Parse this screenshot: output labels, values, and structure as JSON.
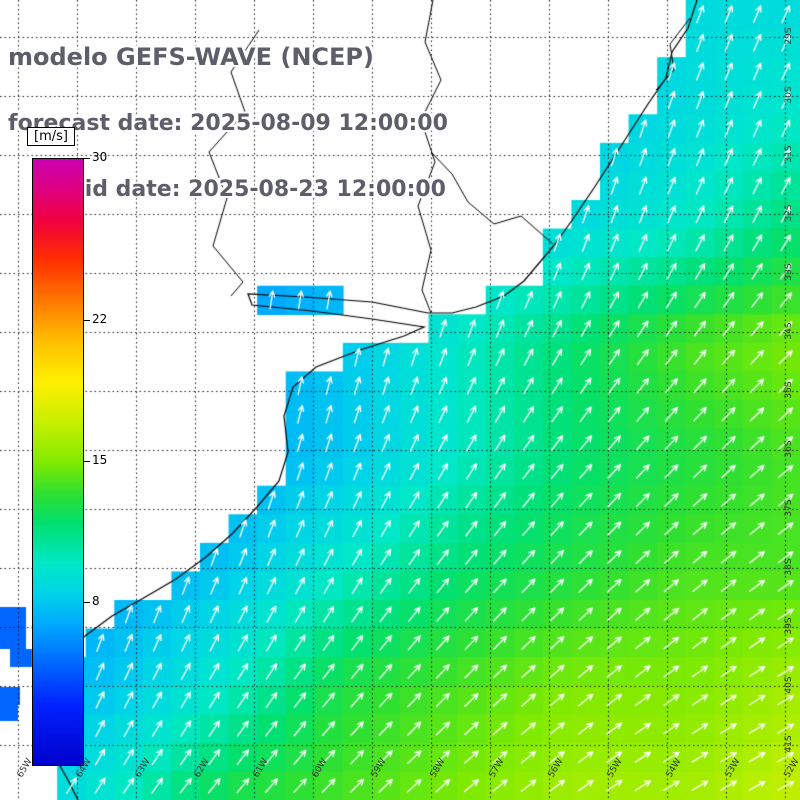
{
  "title": {
    "line1": "modelo GEFS-WAVE (NCEP)",
    "line2": "forecast date: 2025-08-09 12:00:00",
    "line3": "valid date: 2025-08-23 12:00:00"
  },
  "colors": {
    "title": "#5e5e6a",
    "coastline": "#000000",
    "arrow": "#ffffff",
    "grid": "#1a1a1a",
    "labels": "#333333",
    "land": "#ffffff"
  },
  "colorbar": {
    "units_label": "[m/s]",
    "min": 0,
    "max": 30,
    "ticks": [
      30,
      22,
      15,
      8
    ],
    "stops": [
      [
        0,
        "#0000cc"
      ],
      [
        3,
        "#0022ff"
      ],
      [
        5,
        "#0066ff"
      ],
      [
        7,
        "#00aaff"
      ],
      [
        8.5,
        "#00d4e8"
      ],
      [
        10,
        "#00e8c8"
      ],
      [
        12,
        "#00e070"
      ],
      [
        13.5,
        "#30e030"
      ],
      [
        15,
        "#80ea00"
      ],
      [
        17,
        "#c8f000"
      ],
      [
        19,
        "#fff000"
      ],
      [
        21,
        "#ffc000"
      ],
      [
        23,
        "#ff7800"
      ],
      [
        25,
        "#ff3000"
      ],
      [
        27,
        "#f00040"
      ],
      [
        28.5,
        "#e00080"
      ],
      [
        30,
        "#cc00b0"
      ]
    ]
  },
  "grid": {
    "lon_x": [
      18,
      77,
      136,
      195,
      254,
      313,
      372,
      431,
      490,
      549,
      608,
      667,
      726,
      785
    ],
    "lon_labels": [
      "65W",
      "64W",
      "63W",
      "62W",
      "61W",
      "60W",
      "59W",
      "58W",
      "57W",
      "56W",
      "55W",
      "54W",
      "53W",
      "52W"
    ],
    "lat_y": [
      37,
      96,
      155,
      214,
      273,
      332,
      391,
      450,
      509,
      568,
      627,
      686,
      745
    ],
    "lat_labels": [
      "29S",
      "30S",
      "31S",
      "32S",
      "33S",
      "34S",
      "35S",
      "36S",
      "37S",
      "38S",
      "39S",
      "40S",
      "41S"
    ]
  },
  "chart_data": {
    "type": "heatmap",
    "title": "modelo GEFS-WAVE (NCEP)",
    "units": "m/s",
    "colorbar_ticks": [
      30,
      22,
      15,
      8
    ],
    "speed_grid_ms": [
      [
        5,
        5,
        5,
        6,
        7,
        8,
        9,
        9
      ],
      [
        5,
        5,
        5,
        6,
        7,
        8,
        9,
        10
      ],
      [
        5,
        5,
        6,
        7,
        8,
        9,
        10,
        12
      ],
      [
        5,
        6,
        7,
        8,
        10,
        12,
        14,
        15
      ],
      [
        5,
        6,
        7,
        8,
        10,
        12,
        13,
        14
      ],
      [
        6,
        7,
        8,
        10,
        12,
        13,
        14,
        14
      ],
      [
        7,
        8,
        10,
        13,
        14,
        15,
        15,
        16
      ],
      [
        8,
        10,
        13,
        14,
        15,
        16,
        16,
        17
      ]
    ],
    "direction_grid_deg": [
      [
        90,
        90,
        90,
        85,
        80,
        75,
        70,
        65
      ],
      [
        90,
        90,
        88,
        85,
        80,
        75,
        70,
        65
      ],
      [
        90,
        88,
        85,
        82,
        78,
        72,
        65,
        60
      ],
      [
        88,
        85,
        82,
        78,
        70,
        60,
        52,
        45
      ],
      [
        85,
        82,
        78,
        70,
        60,
        50,
        45,
        40
      ],
      [
        80,
        75,
        68,
        60,
        50,
        45,
        40,
        35
      ],
      [
        70,
        65,
        58,
        50,
        45,
        40,
        35,
        30
      ],
      [
        60,
        55,
        50,
        45,
        40,
        35,
        30,
        28
      ]
    ]
  },
  "map": {
    "block_count": 28,
    "land_polygon": [
      [
        0,
        0
      ],
      [
        697,
        0
      ],
      [
        688,
        28
      ],
      [
        672,
        52
      ],
      [
        666,
        78
      ],
      [
        648,
        104
      ],
      [
        630,
        132
      ],
      [
        612,
        160
      ],
      [
        594,
        188
      ],
      [
        575,
        216
      ],
      [
        556,
        243
      ],
      [
        540,
        262
      ],
      [
        524,
        281
      ],
      [
        504,
        296
      ],
      [
        476,
        307
      ],
      [
        452,
        313
      ],
      [
        428,
        313
      ],
      [
        372,
        302
      ],
      [
        305,
        297
      ],
      [
        248,
        294
      ],
      [
        252,
        305
      ],
      [
        312,
        311
      ],
      [
        372,
        319
      ],
      [
        424,
        327
      ],
      [
        404,
        336
      ],
      [
        360,
        350
      ],
      [
        316,
        367
      ],
      [
        293,
        387
      ],
      [
        284,
        416
      ],
      [
        288,
        452
      ],
      [
        279,
        481
      ],
      [
        257,
        507
      ],
      [
        233,
        533
      ],
      [
        206,
        557
      ],
      [
        176,
        579
      ],
      [
        147,
        596
      ],
      [
        112,
        616
      ],
      [
        81,
        639
      ],
      [
        57,
        665
      ],
      [
        45,
        696
      ],
      [
        42,
        726
      ],
      [
        55,
        757
      ],
      [
        68,
        780
      ],
      [
        78,
        800
      ],
      [
        0,
        800
      ]
    ],
    "coastline_slice": [
      1,
      44
    ],
    "borders": [
      [
        [
          433,
          0
        ],
        [
          425,
          42
        ],
        [
          441,
          80
        ],
        [
          421,
          120
        ],
        [
          435,
          162
        ],
        [
          418,
          206
        ],
        [
          431,
          250
        ],
        [
          422,
          290
        ],
        [
          431,
          313
        ]
      ],
      [
        [
          553,
          244
        ],
        [
          521,
          216
        ],
        [
          494,
          224
        ],
        [
          468,
          202
        ],
        [
          452,
          174
        ],
        [
          431,
          152
        ]
      ],
      [
        [
          259,
          30
        ],
        [
          231,
          72
        ],
        [
          245,
          112
        ],
        [
          209,
          152
        ],
        [
          227,
          198
        ],
        [
          213,
          246
        ],
        [
          243,
          282
        ],
        [
          231,
          296
        ]
      ],
      [
        [
          690,
          18
        ],
        [
          670,
          44
        ],
        [
          674,
          70
        ],
        [
          656,
          90
        ]
      ]
    ],
    "gulf_cells": [
      [
        0,
        607,
        26,
        22
      ],
      [
        0,
        629,
        26,
        20
      ],
      [
        10,
        649,
        22,
        18
      ],
      [
        0,
        687,
        20,
        18
      ],
      [
        0,
        705,
        18,
        16
      ]
    ]
  }
}
